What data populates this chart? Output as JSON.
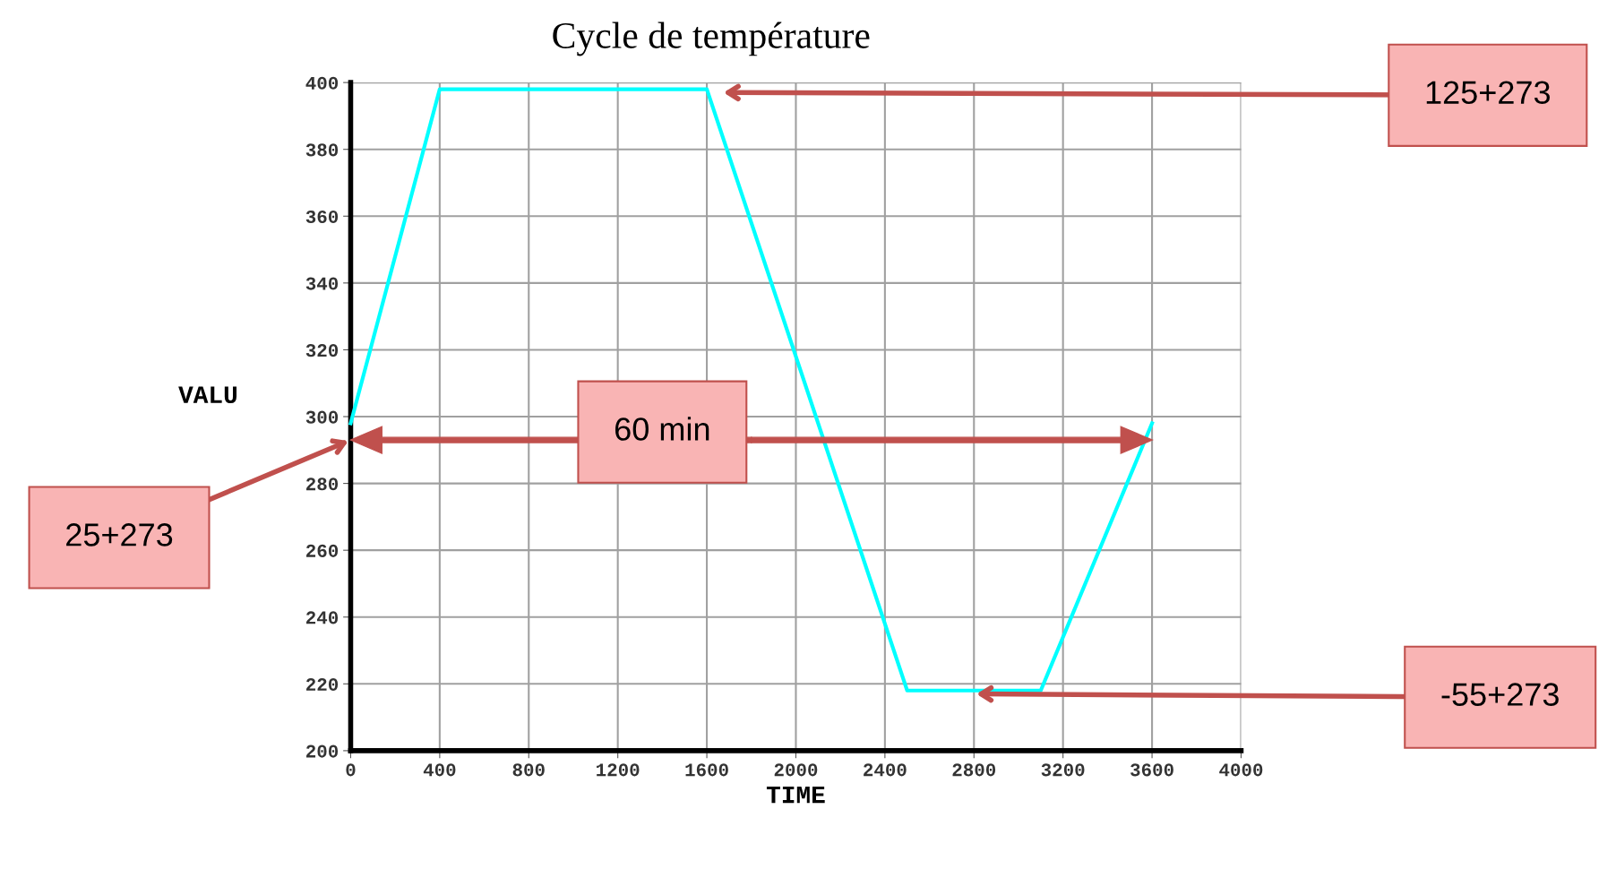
{
  "chart_data": {
    "type": "line",
    "title": "Cycle de température",
    "xlabel": "TIME",
    "ylabel": "VALU",
    "x": [
      0,
      400,
      1600,
      2500,
      3100,
      3600
    ],
    "series": [
      {
        "color": "#00ffff",
        "values": [
          298,
          398,
          398,
          218,
          218,
          298
        ]
      }
    ],
    "xlim": [
      0,
      4000
    ],
    "xticks": [
      0,
      400,
      800,
      1200,
      1600,
      2000,
      2400,
      2800,
      3200,
      3600,
      4000
    ],
    "ylim": [
      200,
      400
    ],
    "yticks": [
      200,
      220,
      240,
      260,
      280,
      300,
      320,
      340,
      360,
      380,
      400
    ],
    "grid": true,
    "marker": "none",
    "line_style": "solid",
    "annotations": [
      "125+273",
      "25+273",
      "60 min",
      "-55+273"
    ]
  }
}
